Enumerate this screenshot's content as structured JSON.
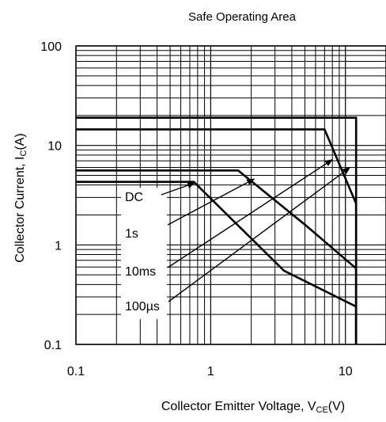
{
  "chart_data": {
    "type": "line",
    "title": "Safe Operating Area",
    "xlabel": {
      "main": "Collector Emitter Voltage, V",
      "sub": "CE",
      "tail": "(V)"
    },
    "ylabel": {
      "main": "Collector Current, I",
      "sub": "C",
      "tail": "(A)"
    },
    "xscale": "log",
    "yscale": "log",
    "xlim": [
      0.1,
      20
    ],
    "ylim": [
      0.1,
      100
    ],
    "grid": true,
    "x_tick_labels": [
      {
        "value": 0.1,
        "label": "0.1"
      },
      {
        "value": 1,
        "label": "1"
      },
      {
        "value": 10,
        "label": "10"
      }
    ],
    "y_tick_labels": [
      {
        "value": 0.1,
        "label": "0.1"
      },
      {
        "value": 1,
        "label": "1"
      },
      {
        "value": 10,
        "label": "10"
      },
      {
        "value": 100,
        "label": "100"
      }
    ],
    "series": [
      {
        "name": "DC",
        "points": [
          [
            0.1,
            4.3
          ],
          [
            0.75,
            4.3
          ],
          [
            3.5,
            0.55
          ],
          [
            12,
            0.24
          ],
          [
            12,
            0.1
          ]
        ]
      },
      {
        "name": "1s",
        "points": [
          [
            0.1,
            5.6
          ],
          [
            1.6,
            5.6
          ],
          [
            5.0,
            1.6
          ],
          [
            12,
            0.58
          ],
          [
            12,
            0.1
          ]
        ]
      },
      {
        "name": "10ms",
        "points": [
          [
            0.1,
            14.5
          ],
          [
            7.0,
            14.5
          ],
          [
            12,
            2.6
          ],
          [
            12,
            0.1
          ]
        ]
      },
      {
        "name": "100µs",
        "points": [
          [
            0.1,
            19
          ],
          [
            12,
            19
          ],
          [
            12,
            0.1
          ]
        ]
      }
    ],
    "annotations": [
      {
        "text": "DC",
        "target": [
          0.76,
          4.2
        ]
      },
      {
        "text": "1s",
        "target": [
          2.1,
          4.6
        ]
      },
      {
        "text": "10ms",
        "target": [
          8.0,
          7.2
        ]
      },
      {
        "text": "100µs",
        "target": [
          10.8,
          6.0
        ]
      }
    ]
  }
}
